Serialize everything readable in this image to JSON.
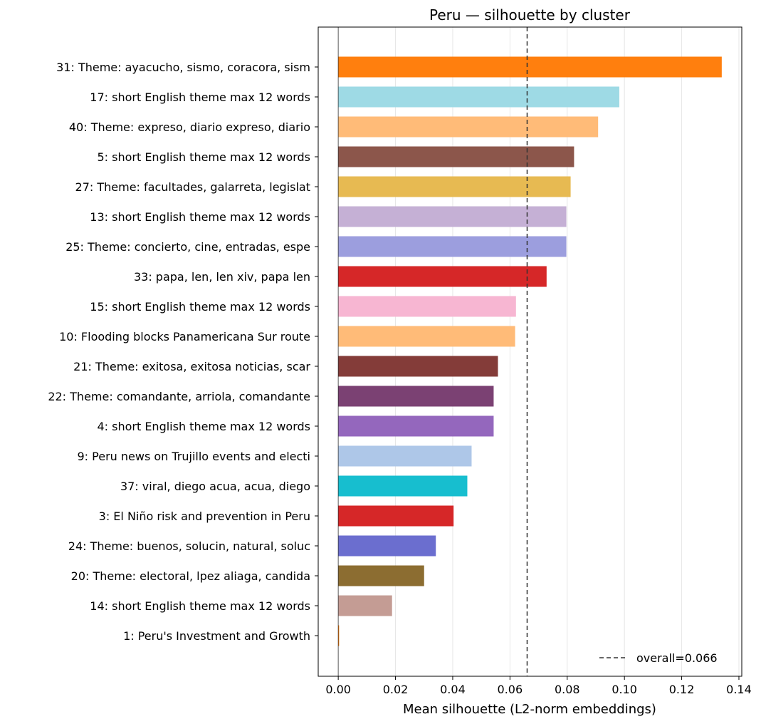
{
  "chart_data": {
    "type": "bar",
    "orientation": "horizontal",
    "title": "Peru — silhouette by cluster",
    "xlabel": "Mean silhouette (L2-norm embeddings)",
    "ylabel": "",
    "xlim": [
      -0.007,
      0.141
    ],
    "xticks": [
      0.0,
      0.02,
      0.04,
      0.06,
      0.08,
      0.1,
      0.12,
      0.14
    ],
    "xtick_labels": [
      "0.00",
      "0.02",
      "0.04",
      "0.06",
      "0.08",
      "0.10",
      "0.12",
      "0.14"
    ],
    "grid": "vertical, light",
    "categories": [
      "31: Theme: ayacucho, sismo, coracora, sism",
      "17: short English theme max 12 words",
      "40: Theme: expreso, diario expreso, diario",
      "5: short English theme max 12 words",
      "27: Theme: facultades, galarreta, legislat",
      "13: short English theme max 12 words",
      "25: Theme: concierto, cine, entradas, espe",
      "33: papa, len, len xiv, papa len",
      "15: short English theme max 12 words",
      "10: Flooding blocks Panamericana Sur route",
      "21: Theme: exitosa, exitosa noticias, scar",
      "22: Theme: comandante, arriola, comandante",
      "4: short English theme max 12 words",
      "9: Peru news on Trujillo events and electi",
      "37: viral, diego acua, acua, diego",
      "3: El Niño risk and prevention in Peru",
      "24: Theme: buenos, solucin, natural, soluc",
      "20: Theme: electoral, lpez aliaga, candida",
      "14: short English theme max 12 words",
      "1: Peru's Investment and Growth"
    ],
    "values": [
      0.134,
      0.0982,
      0.0908,
      0.0824,
      0.0812,
      0.0797,
      0.0797,
      0.0728,
      0.0621,
      0.0618,
      0.0558,
      0.0543,
      0.0543,
      0.0466,
      0.0451,
      0.0403,
      0.0341,
      0.03,
      0.0188,
      0.0003
    ],
    "colors": [
      "#ff7f0e",
      "#9edae5",
      "#ffbb78",
      "#8c564b",
      "#e7ba52",
      "#c5b0d5",
      "#9c9ede",
      "#d62728",
      "#f7b6d2",
      "#ffbb78",
      "#843c39",
      "#7b4173",
      "#9467bd",
      "#aec7e8",
      "#17becf",
      "#d62728",
      "#6b6ecf",
      "#8c6d31",
      "#c49c94",
      "#ff7f0e"
    ],
    "reference_line": {
      "value": 0.066,
      "label": "overall=0.066",
      "style": "dashed"
    },
    "legend": {
      "position": "bottom-right",
      "entries": [
        "overall=0.066"
      ]
    }
  }
}
